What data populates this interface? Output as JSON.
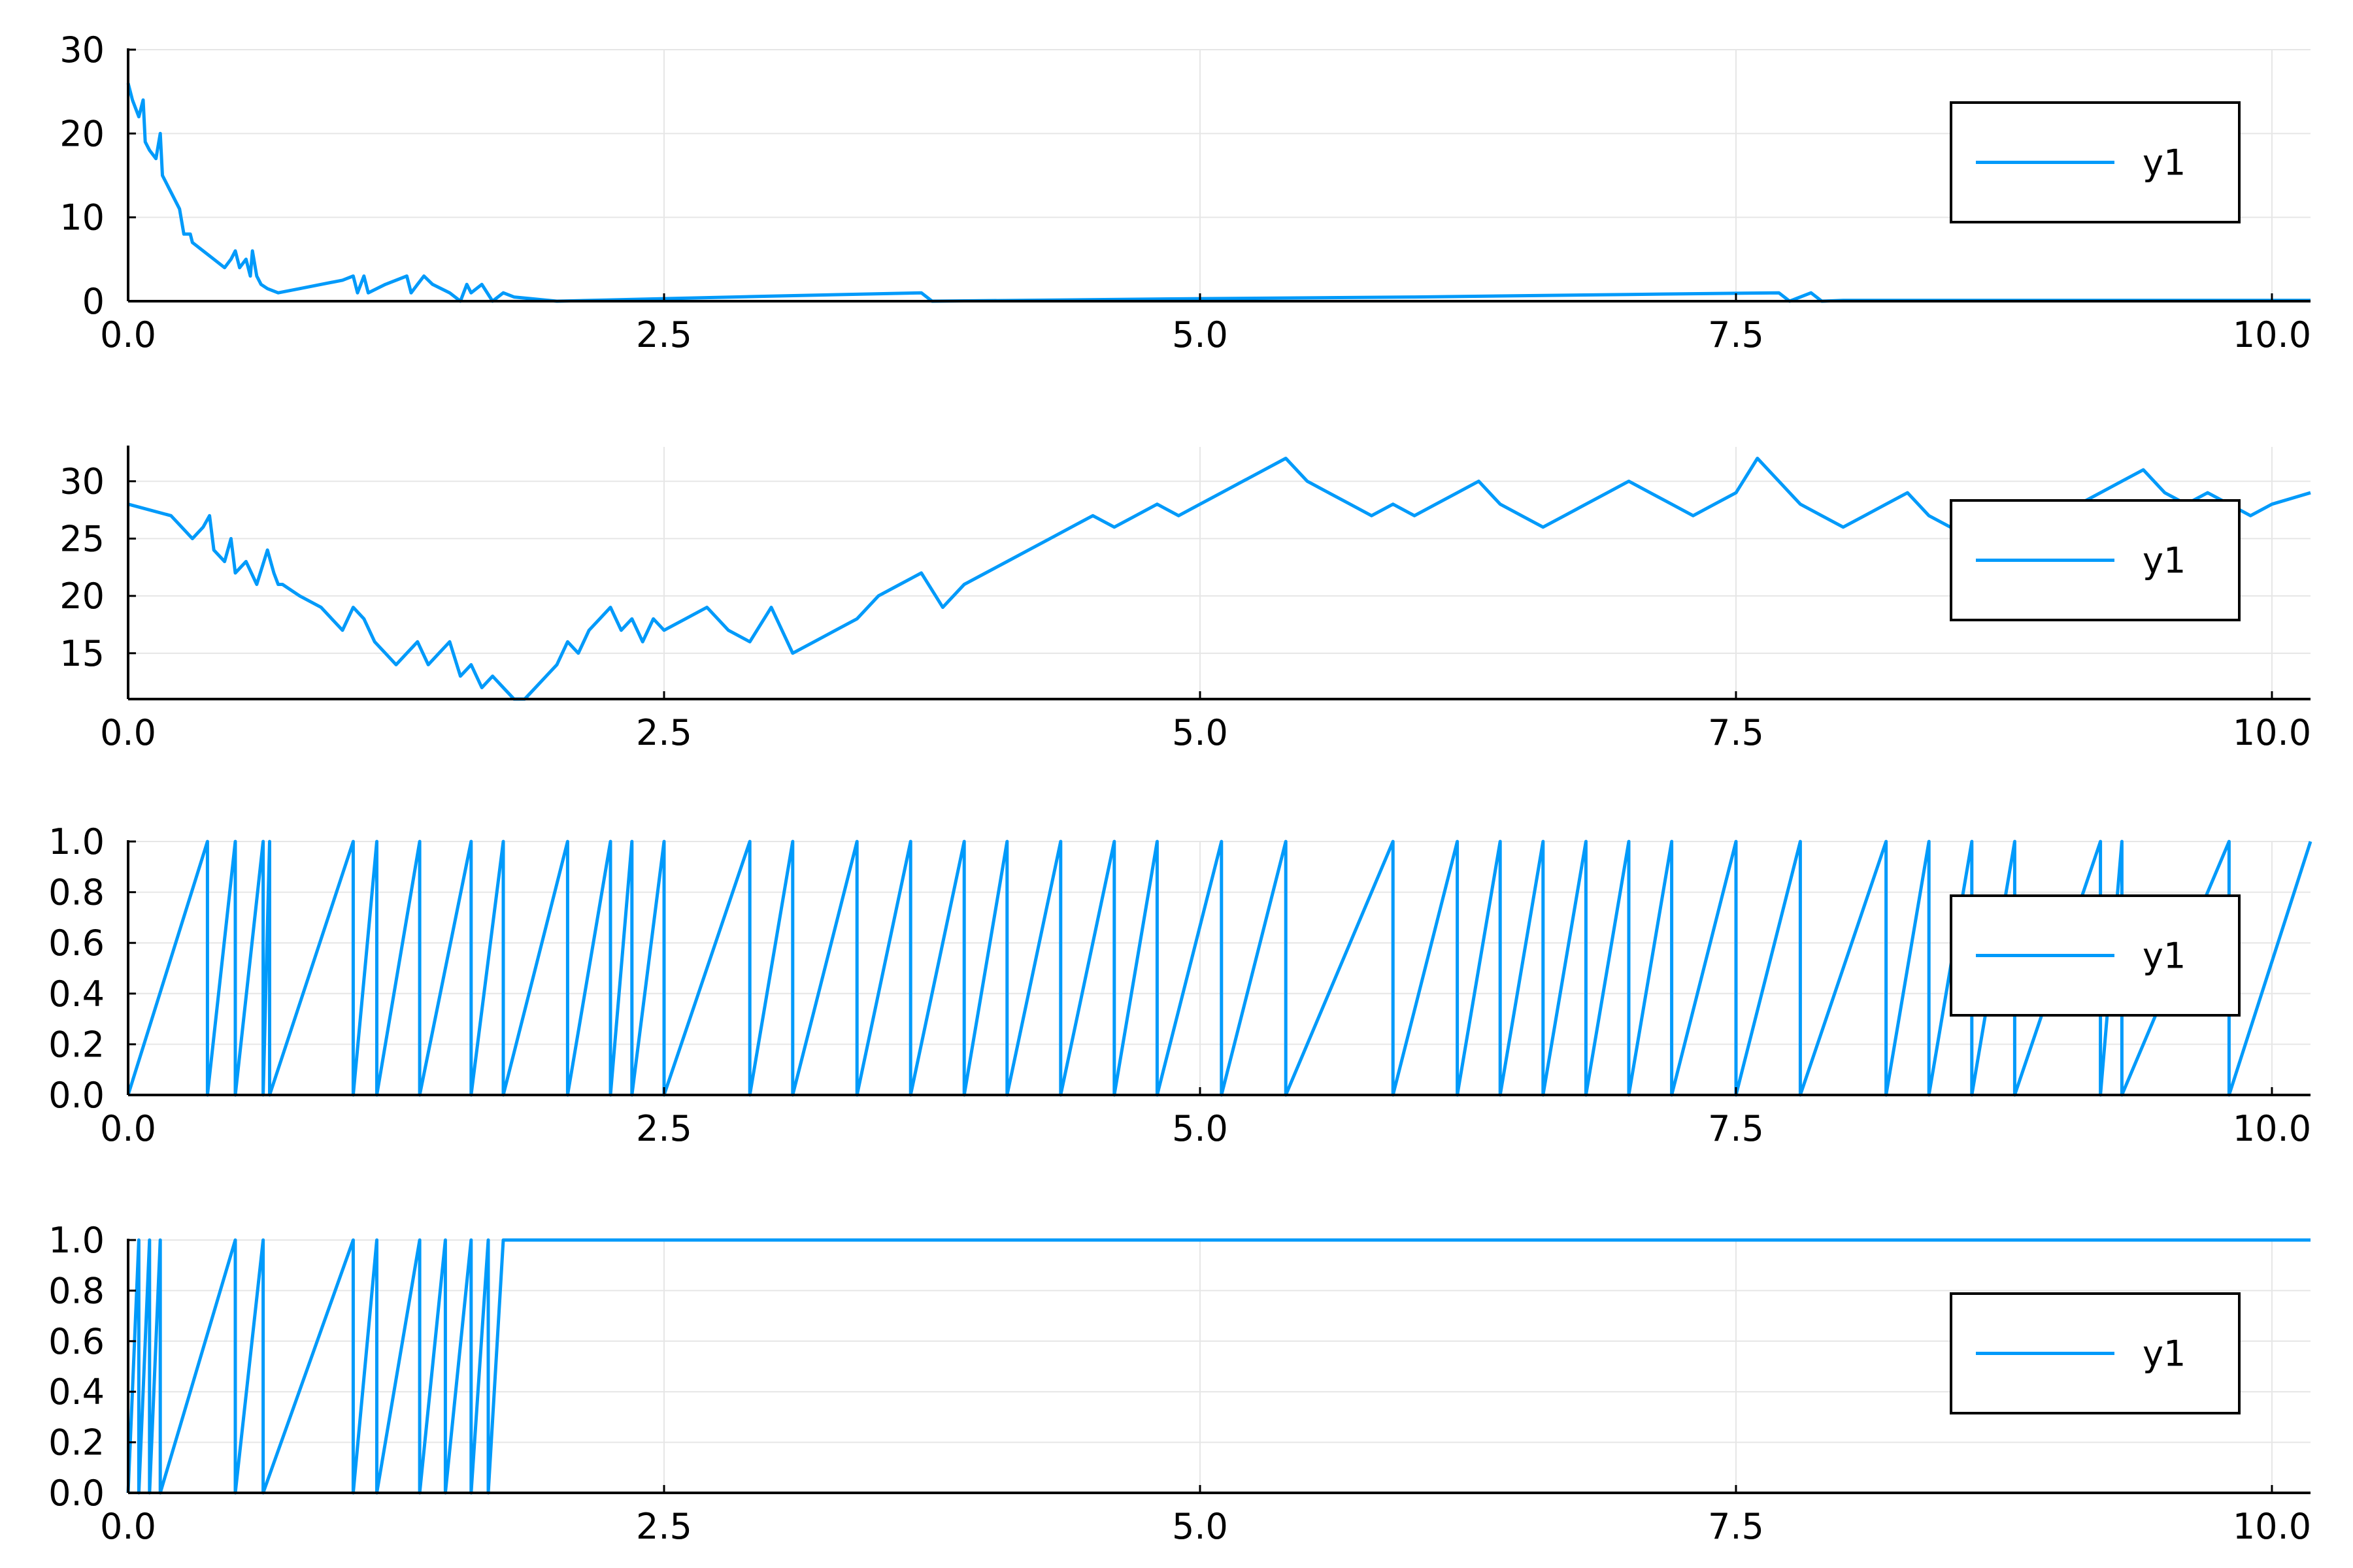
{
  "figure": {
    "background": "#ffffff",
    "series_color": "#009AFA"
  },
  "chart_data": [
    {
      "type": "line",
      "xlim": [
        0,
        10.18
      ],
      "ylim": [
        0,
        30
      ],
      "xticks": [
        "0.0",
        "2.5",
        "5.0",
        "7.5",
        "10.0"
      ],
      "xtick_values": [
        0,
        2.5,
        5,
        7.5,
        10
      ],
      "yticks": [
        "0",
        "10",
        "20",
        "30"
      ],
      "ytick_values": [
        0,
        10,
        20,
        30
      ],
      "grid": true,
      "legend_position": "right",
      "series": [
        {
          "name": "y1",
          "x": [
            0.0,
            0.02,
            0.05,
            0.07,
            0.08,
            0.1,
            0.13,
            0.15,
            0.16,
            0.18,
            0.2,
            0.24,
            0.26,
            0.29,
            0.3,
            0.35,
            0.4,
            0.45,
            0.48,
            0.5,
            0.52,
            0.55,
            0.57,
            0.58,
            0.6,
            0.62,
            0.65,
            0.7,
            0.8,
            0.9,
            1.0,
            1.05,
            1.07,
            1.1,
            1.12,
            1.2,
            1.3,
            1.32,
            1.35,
            1.38,
            1.42,
            1.5,
            1.55,
            1.58,
            1.6,
            1.65,
            1.7,
            1.75,
            1.8,
            2.0,
            2.5,
            3.0,
            3.7,
            3.75,
            5.0,
            6.0,
            7.0,
            7.7,
            7.75,
            7.85,
            7.9,
            8.0,
            9.0,
            10.0,
            10.18
          ],
          "y": [
            26,
            24,
            22,
            24,
            19,
            18,
            17,
            20,
            15,
            14,
            13,
            11,
            8,
            8,
            7,
            6,
            5,
            4,
            5,
            6,
            4,
            5,
            3,
            6,
            3,
            2,
            1.5,
            1,
            1.5,
            2,
            2.5,
            3,
            1,
            3,
            1,
            2,
            3,
            1,
            2,
            3,
            2,
            1,
            0,
            2,
            1,
            2,
            0,
            1,
            0.5,
            0,
            0.3,
            0.6,
            1,
            0,
            0.3,
            0.5,
            0.8,
            1,
            0,
            1,
            0,
            0.1,
            0.1,
            0.1,
            0.1
          ]
        }
      ]
    },
    {
      "type": "line",
      "xlim": [
        0,
        10.18
      ],
      "ylim": [
        11,
        33
      ],
      "xticks": [
        "0.0",
        "2.5",
        "5.0",
        "7.5",
        "10.0"
      ],
      "xtick_values": [
        0,
        2.5,
        5,
        7.5,
        10
      ],
      "yticks": [
        "15",
        "20",
        "25",
        "30"
      ],
      "ytick_values": [
        15,
        20,
        25,
        30
      ],
      "grid": true,
      "legend_position": "right",
      "series": [
        {
          "name": "y1",
          "x": [
            0.0,
            0.2,
            0.25,
            0.3,
            0.35,
            0.38,
            0.4,
            0.45,
            0.48,
            0.5,
            0.55,
            0.6,
            0.65,
            0.68,
            0.7,
            0.72,
            0.8,
            0.9,
            0.95,
            1.0,
            1.05,
            1.1,
            1.15,
            1.2,
            1.25,
            1.3,
            1.35,
            1.4,
            1.45,
            1.5,
            1.55,
            1.6,
            1.65,
            1.7,
            1.75,
            1.8,
            1.85,
            1.9,
            1.95,
            2.0,
            2.05,
            2.1,
            2.15,
            2.2,
            2.25,
            2.3,
            2.35,
            2.4,
            2.45,
            2.5,
            2.6,
            2.7,
            2.8,
            2.9,
            3.0,
            3.1,
            3.2,
            3.3,
            3.4,
            3.5,
            3.6,
            3.7,
            3.8,
            3.9,
            4.0,
            4.1,
            4.2,
            4.3,
            4.4,
            4.5,
            4.6,
            4.7,
            4.8,
            4.9,
            5.0,
            5.1,
            5.2,
            5.3,
            5.4,
            5.5,
            5.6,
            5.7,
            5.8,
            5.9,
            6.0,
            6.1,
            6.2,
            6.3,
            6.4,
            6.5,
            6.6,
            6.7,
            6.8,
            6.9,
            7.0,
            7.1,
            7.2,
            7.3,
            7.4,
            7.5,
            7.6,
            7.65,
            7.7,
            7.8,
            7.9,
            8.0,
            8.1,
            8.2,
            8.3,
            8.4,
            8.5,
            8.6,
            8.7,
            8.8,
            8.9,
            9.0,
            9.1,
            9.2,
            9.3,
            9.4,
            9.5,
            9.6,
            9.7,
            9.8,
            9.9,
            10.0,
            10.18
          ],
          "y": [
            28,
            27,
            26,
            25,
            26,
            27,
            24,
            23,
            25,
            22,
            23,
            21,
            24,
            22,
            21,
            21,
            20,
            19,
            18,
            17,
            19,
            18,
            16,
            15,
            14,
            15,
            16,
            14,
            15,
            16,
            13,
            14,
            12,
            13,
            12,
            11,
            11,
            12,
            13,
            14,
            16,
            15,
            17,
            18,
            19,
            17,
            18,
            16,
            18,
            17,
            18,
            19,
            17,
            16,
            19,
            15,
            16,
            17,
            18,
            20,
            21,
            22,
            19,
            21,
            22,
            23,
            24,
            25,
            26,
            27,
            26,
            27,
            28,
            27,
            28,
            29,
            30,
            31,
            32,
            30,
            29,
            28,
            27,
            28,
            27,
            28,
            29,
            30,
            28,
            27,
            26,
            27,
            28,
            29,
            30,
            29,
            28,
            27,
            28,
            29,
            32,
            31,
            30,
            28,
            27,
            26,
            27,
            28,
            29,
            27,
            26,
            25,
            26,
            27,
            26,
            27,
            28,
            29,
            30,
            31,
            29,
            28,
            29,
            28,
            27,
            28,
            29
          ]
        }
      ]
    },
    {
      "type": "line",
      "xlim": [
        0,
        10.18
      ],
      "ylim": [
        0,
        1
      ],
      "xticks": [
        "0.0",
        "2.5",
        "5.0",
        "7.5",
        "10.0"
      ],
      "xtick_values": [
        0,
        2.5,
        5,
        7.5,
        10
      ],
      "yticks": [
        "0.0",
        "0.2",
        "0.4",
        "0.6",
        "0.8",
        "1.0"
      ],
      "ytick_values": [
        0,
        0.2,
        0.4,
        0.6,
        0.8,
        1
      ],
      "grid": true,
      "legend_position": "right",
      "series": [
        {
          "name": "y1",
          "x": [
            0.0,
            0.37,
            0.37,
            0.5,
            0.5,
            0.63,
            0.63,
            0.66,
            0.66,
            1.05,
            1.05,
            1.16,
            1.16,
            1.36,
            1.36,
            1.6,
            1.6,
            1.75,
            1.75,
            2.05,
            2.05,
            2.25,
            2.25,
            2.35,
            2.35,
            2.5,
            2.5,
            2.9,
            2.9,
            3.1,
            3.1,
            3.4,
            3.4,
            3.65,
            3.65,
            3.9,
            3.9,
            4.1,
            4.1,
            4.35,
            4.35,
            4.6,
            4.6,
            4.8,
            4.8,
            5.1,
            5.1,
            5.4,
            5.4,
            5.9,
            5.9,
            6.2,
            6.2,
            6.4,
            6.4,
            6.6,
            6.6,
            6.8,
            6.8,
            7.0,
            7.0,
            7.2,
            7.2,
            7.5,
            7.5,
            7.8,
            7.8,
            8.2,
            8.2,
            8.4,
            8.4,
            8.6,
            8.6,
            8.8,
            8.8,
            9.2,
            9.2,
            9.3,
            9.3,
            9.8,
            9.8,
            10.18
          ],
          "y": [
            0.0,
            1.0,
            0.0,
            1.0,
            0.0,
            1.0,
            0.0,
            1.0,
            0.0,
            1.0,
            0.0,
            1.0,
            0.0,
            1.0,
            0.0,
            1.0,
            0.0,
            1.0,
            0.0,
            1.0,
            0.0,
            1.0,
            0.0,
            1.0,
            0.0,
            1.0,
            0.0,
            1.0,
            0.0,
            1.0,
            0.0,
            1.0,
            0.0,
            1.0,
            0.0,
            1.0,
            0.0,
            1.0,
            0.0,
            1.0,
            0.0,
            1.0,
            0.0,
            1.0,
            0.0,
            1.0,
            0.0,
            1.0,
            0.0,
            1.0,
            0.0,
            1.0,
            0.0,
            1.0,
            0.0,
            1.0,
            0.0,
            1.0,
            0.0,
            1.0,
            0.0,
            1.0,
            0.0,
            1.0,
            0.0,
            1.0,
            0.0,
            1.0,
            0.0,
            1.0,
            0.0,
            1.0,
            0.0,
            1.0,
            0.0,
            1.0,
            0.0,
            1.0,
            0.0,
            1.0,
            0.0,
            1.0
          ]
        }
      ]
    },
    {
      "type": "line",
      "xlim": [
        0,
        10.18
      ],
      "ylim": [
        0,
        1
      ],
      "xticks": [
        "0.0",
        "2.5",
        "5.0",
        "7.5",
        "10.0"
      ],
      "xtick_values": [
        0,
        2.5,
        5,
        7.5,
        10
      ],
      "yticks": [
        "0.0",
        "0.2",
        "0.4",
        "0.6",
        "0.8",
        "1.0"
      ],
      "ytick_values": [
        0,
        0.2,
        0.4,
        0.6,
        0.8,
        1
      ],
      "grid": true,
      "legend_position": "right",
      "series": [
        {
          "name": "y1",
          "x": [
            0.0,
            0.05,
            0.05,
            0.1,
            0.1,
            0.15,
            0.15,
            0.5,
            0.5,
            0.63,
            0.63,
            1.05,
            1.05,
            1.16,
            1.16,
            1.36,
            1.36,
            1.48,
            1.48,
            1.6,
            1.6,
            1.68,
            1.68,
            1.75,
            10.18
          ],
          "y": [
            0.0,
            1.0,
            0.0,
            1.0,
            0.0,
            1.0,
            0.0,
            1.0,
            0.0,
            1.0,
            0.0,
            1.0,
            0.0,
            1.0,
            0.0,
            1.0,
            0.0,
            1.0,
            0.0,
            1.0,
            0.0,
            1.0,
            0.0,
            1.0,
            1.0
          ]
        }
      ]
    }
  ]
}
